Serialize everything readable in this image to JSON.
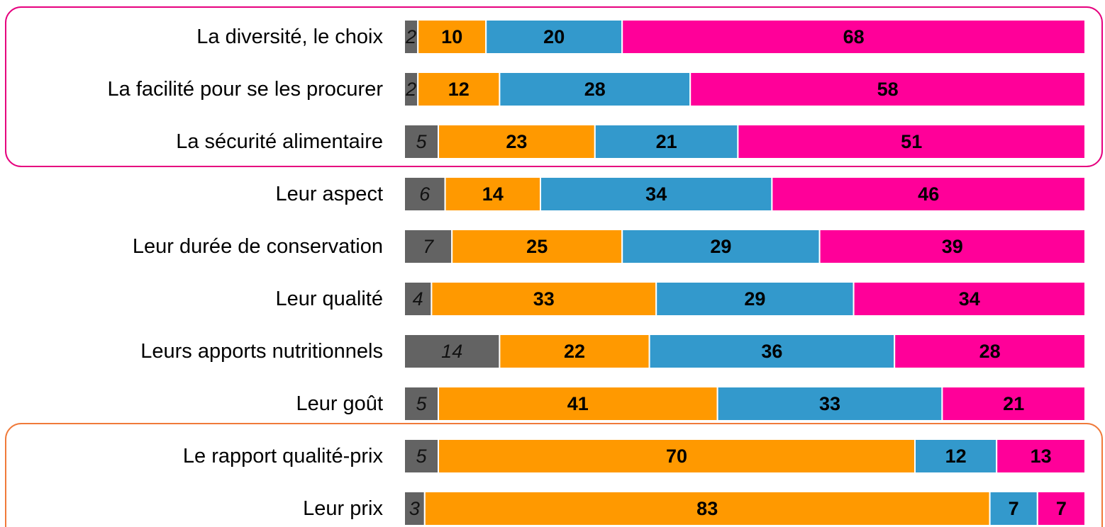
{
  "chart_data": {
    "type": "stacked-bar-horizontal",
    "categories": [
      "La diversité, le choix",
      "La facilité pour se les procurer",
      "La sécurité alimentaire",
      "Leur aspect",
      "Leur durée de conservation",
      "Leur qualité",
      "Leurs apports nutritionnels",
      "Leur goût",
      "Le rapport qualité-prix",
      "Leur prix"
    ],
    "series": [
      {
        "color": "#636363",
        "values": [
          2,
          2,
          5,
          6,
          7,
          4,
          14,
          5,
          5,
          3
        ]
      },
      {
        "color": "#ff9900",
        "values": [
          10,
          12,
          23,
          14,
          25,
          33,
          22,
          41,
          70,
          83
        ]
      },
      {
        "color": "#3399cc",
        "values": [
          20,
          28,
          21,
          34,
          29,
          29,
          36,
          33,
          12,
          7
        ]
      },
      {
        "color": "#ff0099",
        "values": [
          68,
          58,
          51,
          46,
          39,
          34,
          28,
          21,
          13,
          7
        ]
      }
    ],
    "xlim": [
      0,
      100
    ]
  }
}
